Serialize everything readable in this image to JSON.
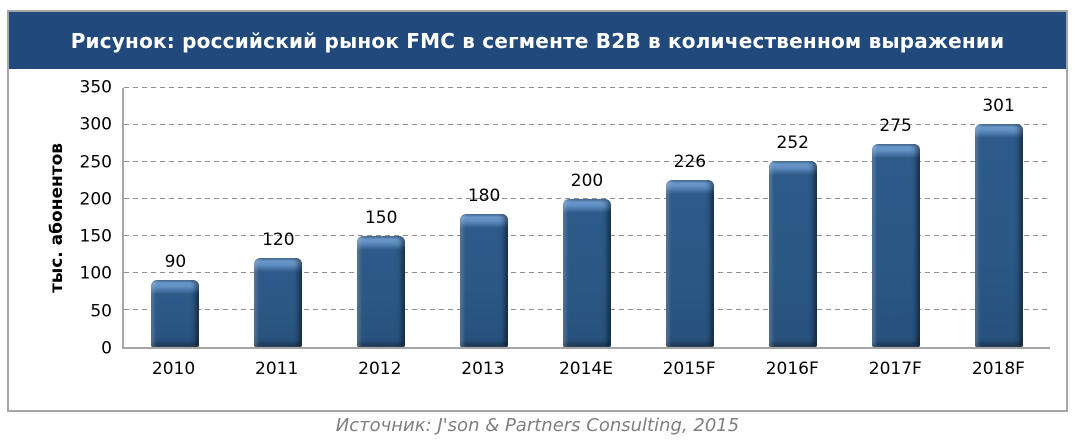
{
  "title": "Рисунок: российский рынок FMC в сегменте B2B в количественном выражении",
  "source": "Источник: J'son & Partners Consulting, 2015",
  "colors": {
    "title_bar": "#21497C",
    "title_text": "#FFFFFF",
    "bar_fill": "#2B5885",
    "bar_highlight": "#5E8DC0",
    "gridline": "#909090",
    "frame_border": "#A6A6A6",
    "axis_text": "#000000",
    "source_text": "#7F7F7F"
  },
  "chart_data": {
    "type": "bar",
    "categories": [
      "2010",
      "2011",
      "2012",
      "2013",
      "2014E",
      "2015F",
      "2016F",
      "2017F",
      "2018F"
    ],
    "values": [
      90,
      120,
      150,
      180,
      200,
      226,
      252,
      275,
      301
    ],
    "title": "Рисунок: российский рынок FMC в сегменте B2B в количественном выражении",
    "xlabel": "",
    "ylabel": "тыс. абонентов",
    "ylim": [
      0,
      350
    ],
    "ytick_step": 50,
    "grid": "horizontal-dashed",
    "legend": "none",
    "data_labels": true
  }
}
